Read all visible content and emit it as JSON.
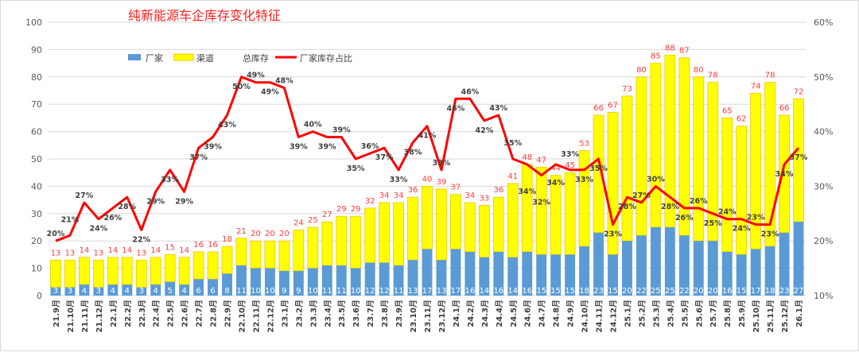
{
  "chart_data": {
    "type": "bar",
    "title": "纯新能源车企库存变化特征",
    "categories": [
      "21.9月",
      "21.10月",
      "21.11月",
      "21.12月",
      "22.1月",
      "22.2月",
      "22.3月",
      "22.4月",
      "22.5月",
      "22.6月",
      "22.7月",
      "22.8月",
      "22.9月",
      "22.10月",
      "22.11月",
      "22.12月",
      "23.1月",
      "23.2月",
      "23.3月",
      "23.4月",
      "23.5月",
      "23.6月",
      "23.7月",
      "23.8月",
      "23.9月",
      "23.10月",
      "23.11月",
      "23.12月",
      "24.1月",
      "24.2月",
      "24.3月",
      "24.4月",
      "24.5月",
      "24.6月",
      "24.7月",
      "24.8月",
      "24.9月",
      "24.10月",
      "24.11月",
      "24.12月",
      "25.1月",
      "25.2月",
      "25.3月",
      "25.4月",
      "25.5月",
      "25.6月",
      "25.7月",
      "25.8月",
      "25.9月",
      "25.10月",
      "25.11月",
      "25.12月",
      "26.1月"
    ],
    "series": [
      {
        "name": "厂家",
        "type": "stacked-bar",
        "color": "#5b9bd5",
        "values": [
          3,
          3,
          4,
          3,
          4,
          4,
          3,
          4,
          5,
          4,
          6,
          6,
          8,
          11,
          10,
          10,
          9,
          9,
          10,
          11,
          11,
          10,
          12,
          12,
          11,
          13,
          17,
          13,
          17,
          16,
          14,
          16,
          14,
          16,
          15,
          15,
          15,
          18,
          23,
          15,
          20,
          22,
          25,
          25,
          22,
          20,
          20,
          16,
          15,
          17,
          18,
          23,
          27
        ]
      },
      {
        "name": "渠道",
        "type": "stacked-bar",
        "color": "#ffff00",
        "note_values_are": "remainder of total"
      },
      {
        "name": "总库存",
        "type": "label",
        "color": "#ff3b3b",
        "values": [
          13,
          13,
          14,
          13,
          14,
          14,
          13,
          14,
          15,
          14,
          16,
          16,
          18,
          21,
          20,
          20,
          20,
          24,
          25,
          27,
          29,
          29,
          32,
          34,
          34,
          36,
          40,
          39,
          37,
          34,
          33,
          36,
          41,
          48,
          47,
          44,
          45,
          53,
          66,
          67,
          73,
          80,
          85,
          88,
          87,
          80,
          78,
          65,
          62,
          74,
          78,
          66,
          72
        ]
      },
      {
        "name": "厂家库存占比",
        "type": "line",
        "axis": "right",
        "color": "#ff0000",
        "values": [
          20,
          21,
          27,
          24,
          26,
          28,
          22,
          29,
          33,
          29,
          37,
          39,
          43,
          50,
          49,
          49,
          48,
          39,
          40,
          39,
          39,
          35,
          36,
          37,
          33,
          38,
          41,
          33,
          46,
          46,
          42,
          43,
          35,
          34,
          32,
          34,
          33,
          33,
          35,
          23,
          28,
          27,
          30,
          28,
          26,
          26,
          25,
          24,
          24,
          23,
          23,
          34,
          37
        ]
      }
    ],
    "ylim": [
      0,
      100
    ],
    "yticks": [
      0,
      10,
      20,
      30,
      40,
      50,
      60,
      70,
      80,
      90,
      100
    ],
    "y2lim": [
      10,
      60
    ],
    "y2ticks": [
      "10%",
      "20%",
      "30%",
      "40%",
      "50%",
      "60%"
    ],
    "grid": true,
    "legend": "top-left"
  }
}
